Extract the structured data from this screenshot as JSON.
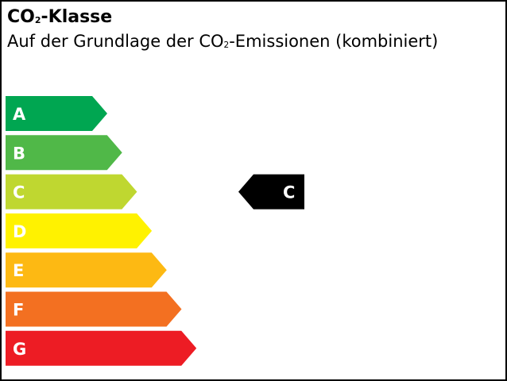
{
  "title": {
    "pre": "CO",
    "sub": "2",
    "post": "-Klasse"
  },
  "subtitle": {
    "pre": "Auf der Grundlage der CO",
    "sub": "2",
    "post": "-Emissionen (kombiniert)"
  },
  "classes": [
    {
      "label": "A",
      "color": "#00a651"
    },
    {
      "label": "B",
      "color": "#50b848"
    },
    {
      "label": "C",
      "color": "#bfd730"
    },
    {
      "label": "D",
      "color": "#fff200"
    },
    {
      "label": "E",
      "color": "#fdb913"
    },
    {
      "label": "F",
      "color": "#f37021"
    },
    {
      "label": "G",
      "color": "#ed1c24"
    }
  ],
  "indicator": {
    "label": "C",
    "class_index": 2,
    "color": "#000000"
  }
}
